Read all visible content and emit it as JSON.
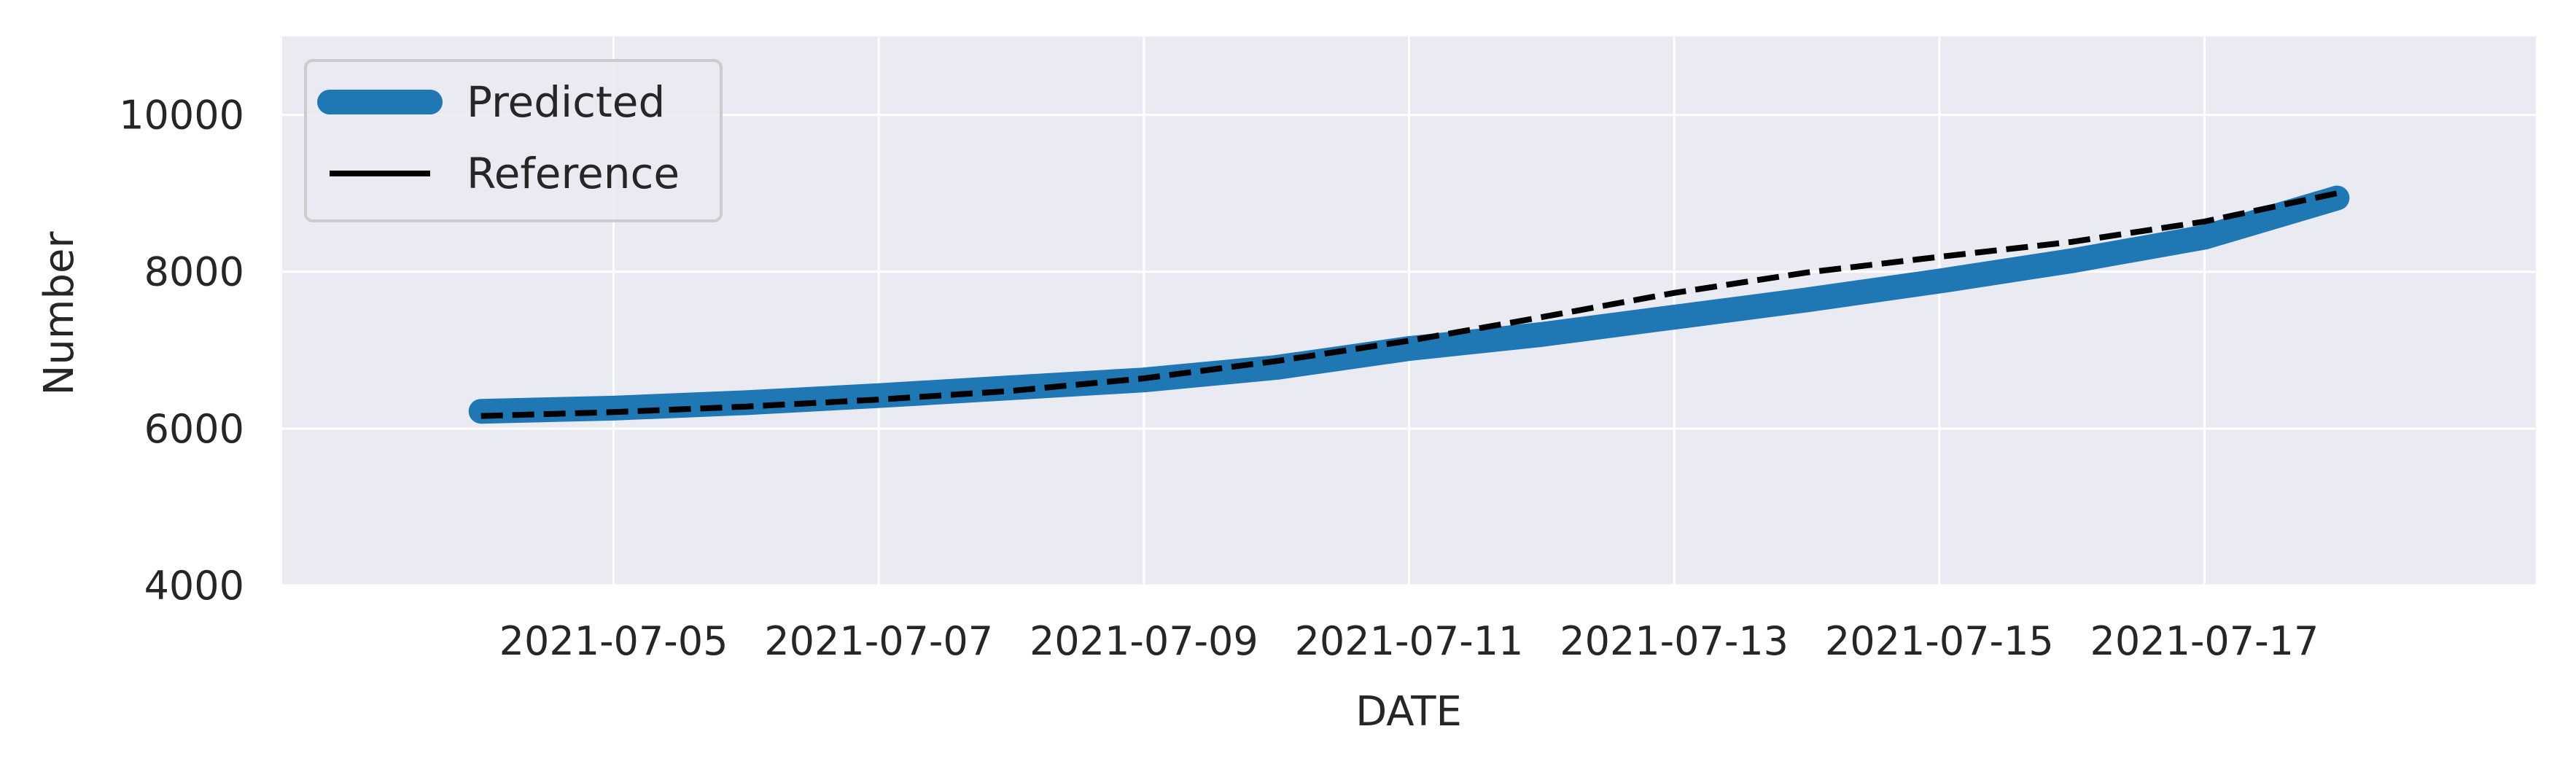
{
  "chart_data": {
    "type": "line",
    "xlabel": "DATE",
    "ylabel": "Number",
    "ylim": [
      4000,
      11000
    ],
    "xlim": [
      "2021-07-02T12:00",
      "2021-07-19T12:00"
    ],
    "yticks": [
      4000,
      6000,
      8000,
      10000
    ],
    "xticks": [
      "2021-07-05",
      "2021-07-07",
      "2021-07-09",
      "2021-07-11",
      "2021-07-13",
      "2021-07-15",
      "2021-07-17"
    ],
    "grid": true,
    "legend": {
      "placement": "upper-left",
      "entries": [
        "Predicted",
        "Reference"
      ]
    },
    "x": [
      "2021-07-04",
      "2021-07-05",
      "2021-07-06",
      "2021-07-07",
      "2021-07-08",
      "2021-07-09",
      "2021-07-10",
      "2021-07-11",
      "2021-07-12",
      "2021-07-13",
      "2021-07-14",
      "2021-07-15",
      "2021-07-16",
      "2021-07-17",
      "2021-07-18"
    ],
    "series": [
      {
        "name": "Predicted",
        "color": "#1f77b4",
        "style": "solid-thick",
        "values": [
          6220,
          6260,
          6330,
          6420,
          6520,
          6620,
          6780,
          7020,
          7200,
          7420,
          7640,
          7880,
          8140,
          8440,
          8940
        ]
      },
      {
        "name": "Reference",
        "color": "#000000",
        "style": "dashed",
        "values": [
          6160,
          6210,
          6280,
          6370,
          6480,
          6640,
          6860,
          7120,
          7420,
          7730,
          7990,
          8190,
          8380,
          8640,
          9000
        ]
      }
    ]
  },
  "colors": {
    "plot_background": "#eaeaf2",
    "grid": "#ffffff"
  }
}
